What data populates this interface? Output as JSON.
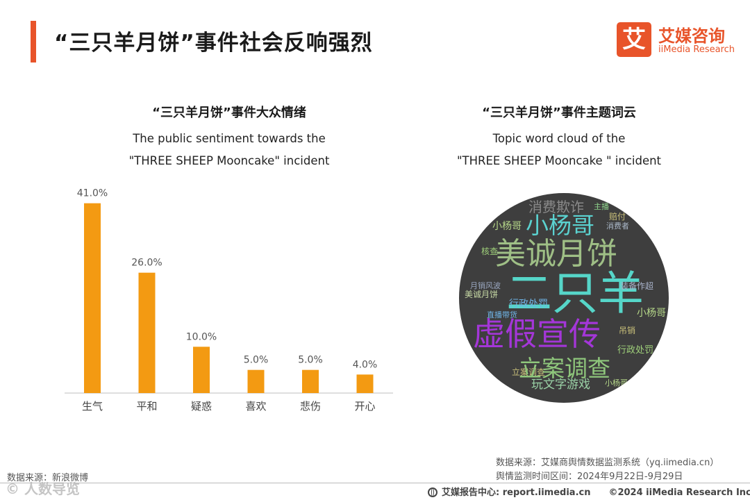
{
  "header": {
    "title": "“三只羊月饼”事件社会反响强烈",
    "logo_mark": "艾",
    "logo_cn": "艾媒咨询",
    "logo_en": "iiMedia Research",
    "accent_color": "#e8542a"
  },
  "left_panel": {
    "title_cn": "“三只羊月饼”事件大众情绪",
    "title_en_1": "The public sentiment towards the",
    "title_en_2": "\"THREE SHEEP Mooncake\" incident"
  },
  "right_panel": {
    "title_cn": "“三只羊月饼”事件主题词云",
    "title_en_1": "Topic word cloud of the",
    "title_en_2": "\"THREE SHEEP Mooncake \" incident",
    "cloud_words": [
      "消费欺诈",
      "主播",
      "小杨哥",
      "赔付",
      "消费者",
      "美诚月饼",
      "核查",
      "立案调查",
      "直播带货",
      "二只羊",
      "行政处罚",
      "月销风波",
      "装备作超",
      "虚假宣传",
      "玩文字游戏",
      "吊销",
      "小杨哥"
    ]
  },
  "chart_data": {
    "type": "bar",
    "categories": [
      "生气",
      "平和",
      "疑惑",
      "喜欢",
      "悲伤",
      "开心"
    ],
    "values": [
      41.0,
      26.0,
      10.0,
      5.0,
      5.0,
      4.0
    ],
    "value_labels": [
      "41.0%",
      "26.0%",
      "10.0%",
      "5.0%",
      "5.0%",
      "4.0%"
    ],
    "ylim": [
      0,
      45
    ],
    "bar_color": "#f39a12",
    "grid": false
  },
  "footer": {
    "source_left": "数据来源：新浪微博",
    "watermark": "© 人数导览",
    "source_right_1": "数据来源：艾媒商舆情数据监测系统（yq.iimedia.cn）",
    "source_right_2": "舆情监测时间区间：2024年9月22日-9月29日",
    "report_center": "艾媒报告中心: report.iimedia.cn",
    "copyright": "©2024  iiMedia Research  Inc"
  }
}
